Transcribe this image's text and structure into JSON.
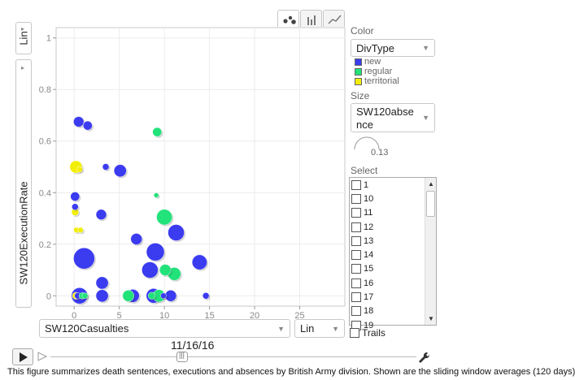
{
  "chart_data": {
    "type": "scatter",
    "xlabel": "SW120Casualties",
    "ylabel": "SW120ExecutionRate",
    "xlim": [
      -2,
      30
    ],
    "ylim": [
      -0.04,
      1.04
    ],
    "x_ticks": [
      0,
      5,
      10,
      15,
      20,
      25
    ],
    "y_ticks": [
      0,
      0.2,
      0.4,
      0.6,
      0.8,
      1
    ],
    "x_tick_labels": [
      "0",
      "5",
      "10",
      "15",
      "20",
      "25"
    ],
    "y_tick_labels": [
      "0",
      "0.2",
      "0.4",
      "0.6",
      "0.8",
      "1"
    ],
    "grid": true,
    "legend_position": "right",
    "series": [
      {
        "name": "new",
        "color": "#3b3bf0",
        "points": [
          {
            "x": 0.5,
            "y": 0.675,
            "size": 0.22
          },
          {
            "x": 1.5,
            "y": 0.66,
            "size": 0.18
          },
          {
            "x": 3.5,
            "y": 0.5,
            "size": 0.1
          },
          {
            "x": 5.1,
            "y": 0.485,
            "size": 0.28
          },
          {
            "x": 0.1,
            "y": 0.385,
            "size": 0.18
          },
          {
            "x": 0.1,
            "y": 0.345,
            "size": 0.1
          },
          {
            "x": 3.0,
            "y": 0.315,
            "size": 0.22
          },
          {
            "x": 11.3,
            "y": 0.245,
            "size": 0.4
          },
          {
            "x": 6.9,
            "y": 0.22,
            "size": 0.25
          },
          {
            "x": 9.0,
            "y": 0.17,
            "size": 0.45
          },
          {
            "x": 1.1,
            "y": 0.145,
            "size": 0.55
          },
          {
            "x": 13.9,
            "y": 0.13,
            "size": 0.36
          },
          {
            "x": 8.4,
            "y": 0.1,
            "size": 0.4
          },
          {
            "x": 3.1,
            "y": 0.05,
            "size": 0.28
          },
          {
            "x": 0.6,
            "y": 0.0,
            "size": 0.4
          },
          {
            "x": 3.1,
            "y": 0.0,
            "size": 0.28
          },
          {
            "x": 6.5,
            "y": 0.0,
            "size": 0.3
          },
          {
            "x": 8.8,
            "y": 0.0,
            "size": 0.35
          },
          {
            "x": 10.7,
            "y": 0.0,
            "size": 0.25
          },
          {
            "x": 14.6,
            "y": 0.0,
            "size": 0.1
          },
          {
            "x": 9.9,
            "y": 0.0,
            "size": 0.08
          },
          {
            "x": 0.4,
            "y": 0.0,
            "size": 0.1
          }
        ]
      },
      {
        "name": "regular",
        "color": "#22e27a",
        "points": [
          {
            "x": 9.2,
            "y": 0.635,
            "size": 0.18
          },
          {
            "x": 9.1,
            "y": 0.39,
            "size": 0.05
          },
          {
            "x": 10.0,
            "y": 0.305,
            "size": 0.38
          },
          {
            "x": 10.1,
            "y": 0.1,
            "size": 0.25
          },
          {
            "x": 11.1,
            "y": 0.085,
            "size": 0.3
          },
          {
            "x": 6.0,
            "y": 0.0,
            "size": 0.25
          },
          {
            "x": 9.4,
            "y": 0.0,
            "size": 0.28
          },
          {
            "x": 8.6,
            "y": 0.0,
            "size": 0.12
          },
          {
            "x": 0.9,
            "y": 0.0,
            "size": 0.1
          },
          {
            "x": 1.2,
            "y": 0.0,
            "size": 0.08
          }
        ]
      },
      {
        "name": "territorial",
        "color": "#f2ee08",
        "points": [
          {
            "x": 0.2,
            "y": 0.5,
            "size": 0.28
          },
          {
            "x": 0.6,
            "y": 0.49,
            "size": 0.08
          },
          {
            "x": 0.1,
            "y": 0.325,
            "size": 0.12
          },
          {
            "x": 0.25,
            "y": 0.255,
            "size": 0.07
          },
          {
            "x": 0.7,
            "y": 0.255,
            "size": 0.07
          },
          {
            "x": 0.2,
            "y": 0.0,
            "size": 0.12
          }
        ]
      }
    ]
  },
  "axis_controls": {
    "y_scale": "Lin",
    "x_scale": "Lin",
    "x_variable": "SW120Casualties"
  },
  "color_panel": {
    "label": "Color",
    "selected": "DivType",
    "legend": [
      {
        "label": "new",
        "color": "#3b3bf0"
      },
      {
        "label": "regular",
        "color": "#22e27a"
      },
      {
        "label": "territorial",
        "color": "#f2ee08"
      }
    ]
  },
  "size_panel": {
    "label": "Size",
    "selected": "SW120absence",
    "value": "0.13"
  },
  "select_panel": {
    "label": "Select",
    "items": [
      "1",
      "10",
      "11",
      "12",
      "13",
      "14",
      "15",
      "16",
      "17",
      "18",
      "19"
    ]
  },
  "trails_label": "Trails",
  "playback": {
    "date": "11/16/16",
    "position": 0.36
  },
  "caption": "This figure summarizes death sentences, executions and absences by British Army division. Shown are the sliding window averages (120 days)"
}
